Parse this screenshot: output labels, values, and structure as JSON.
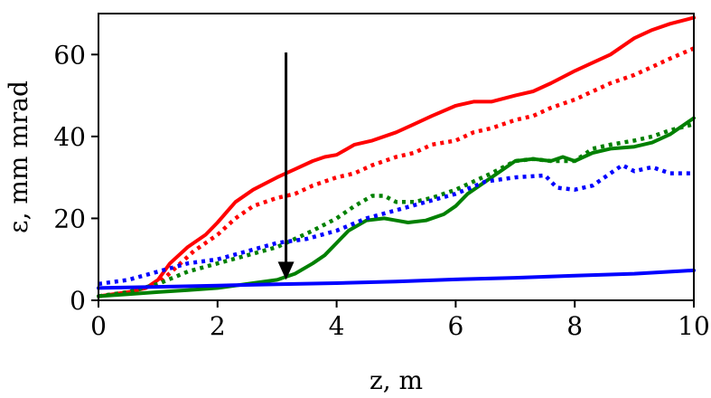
{
  "chart_data": {
    "type": "line",
    "xlabel": "z, m",
    "ylabel": "ε, mm mrad",
    "xlim": [
      0,
      10
    ],
    "ylim": [
      0,
      70
    ],
    "xticks": [
      "0",
      "2",
      "4",
      "6",
      "8",
      "10"
    ],
    "yticks": [
      "0",
      "20",
      "40",
      "60"
    ],
    "grid": false,
    "legend": "none",
    "annotation": {
      "type": "arrow",
      "x": 3.15,
      "y_from": 60.5,
      "y_to": 5
    },
    "series": [
      {
        "color": "#ff0000",
        "style": "solid",
        "x": [
          0,
          0.5,
          0.8,
          1.0,
          1.2,
          1.5,
          1.8,
          2.0,
          2.3,
          2.6,
          3.0,
          3.3,
          3.6,
          3.8,
          4.0,
          4.3,
          4.6,
          5.0,
          5.3,
          5.6,
          6.0,
          6.3,
          6.6,
          7.0,
          7.3,
          7.6,
          8.0,
          8.3,
          8.6,
          9.0,
          9.3,
          9.6,
          10.0
        ],
        "y": [
          1,
          2,
          3,
          5,
          9,
          13,
          16,
          19,
          24,
          27,
          30,
          32,
          34,
          35,
          35.5,
          38,
          39,
          41,
          43,
          45,
          47.5,
          48.5,
          48.5,
          50,
          51,
          53,
          56,
          58,
          60,
          64,
          66,
          67.5,
          69
        ]
      },
      {
        "color": "#ff0000",
        "style": "dotted",
        "x": [
          0,
          0.5,
          1.0,
          1.3,
          1.6,
          2.0,
          2.3,
          2.6,
          3.0,
          3.3,
          3.6,
          4.0,
          4.3,
          4.6,
          5.0,
          5.3,
          5.6,
          6.0,
          6.3,
          6.6,
          7.0,
          7.3,
          7.6,
          8.0,
          8.3,
          8.6,
          9.0,
          9.3,
          9.6,
          10.0
        ],
        "y": [
          1,
          2,
          4,
          8,
          12,
          16,
          20,
          23,
          25,
          26,
          28,
          30,
          31,
          33,
          35,
          36,
          38,
          39,
          41,
          42,
          44,
          45,
          47,
          49,
          51,
          53,
          55,
          57,
          59,
          61.5
        ]
      },
      {
        "color": "#008000",
        "style": "solid",
        "x": [
          0,
          0.5,
          1.0,
          1.5,
          2.0,
          2.5,
          3.0,
          3.3,
          3.6,
          3.8,
          4.0,
          4.2,
          4.5,
          4.8,
          5.0,
          5.2,
          5.5,
          5.8,
          6.0,
          6.2,
          6.5,
          6.8,
          7.0,
          7.3,
          7.6,
          7.8,
          8.0,
          8.3,
          8.6,
          9.0,
          9.3,
          9.6,
          10.0
        ],
        "y": [
          1,
          1.5,
          2,
          2.5,
          3,
          4,
          5,
          6.5,
          9,
          11,
          14,
          17,
          19.5,
          20,
          19.5,
          19,
          19.5,
          21,
          23,
          26,
          29,
          32,
          34,
          34.5,
          34,
          35,
          34,
          36,
          37,
          37.5,
          38.5,
          40.5,
          44.5
        ]
      },
      {
        "color": "#008000",
        "style": "dotted",
        "x": [
          0,
          0.5,
          1.0,
          1.5,
          2.0,
          2.5,
          3.0,
          3.3,
          3.6,
          4.0,
          4.3,
          4.6,
          4.8,
          5.0,
          5.3,
          5.6,
          6.0,
          6.3,
          6.6,
          7.0,
          7.3,
          7.6,
          8.0,
          8.3,
          8.6,
          9.0,
          9.3,
          9.6,
          10.0
        ],
        "y": [
          1,
          2,
          4,
          7,
          9,
          11,
          13,
          15,
          17,
          20,
          23,
          25.5,
          25.5,
          24,
          24,
          25,
          27,
          29,
          31,
          34,
          34.5,
          34,
          34,
          37,
          38,
          39,
          40,
          41.5,
          43
        ]
      },
      {
        "color": "#0000ff",
        "style": "solid",
        "x": [
          0,
          1,
          2,
          3,
          4,
          5,
          6,
          7,
          8,
          9,
          10
        ],
        "y": [
          3,
          3.3,
          3.6,
          3.9,
          4.2,
          4.6,
          5.1,
          5.5,
          6.0,
          6.5,
          7.3
        ]
      },
      {
        "color": "#0000ff",
        "style": "dotted",
        "x": [
          0,
          0.5,
          1.0,
          1.5,
          2.0,
          2.5,
          3.0,
          3.5,
          4.0,
          4.5,
          5.0,
          5.5,
          6.0,
          6.5,
          7.0,
          7.5,
          7.7,
          8.0,
          8.3,
          8.6,
          8.8,
          9.0,
          9.3,
          9.6,
          10.0
        ],
        "y": [
          4,
          5,
          7,
          9,
          10,
          12,
          14,
          15,
          17,
          20,
          22,
          24,
          26,
          29,
          30,
          30.5,
          27.5,
          27,
          28,
          31,
          33,
          31.5,
          32.5,
          31,
          31
        ]
      }
    ]
  }
}
